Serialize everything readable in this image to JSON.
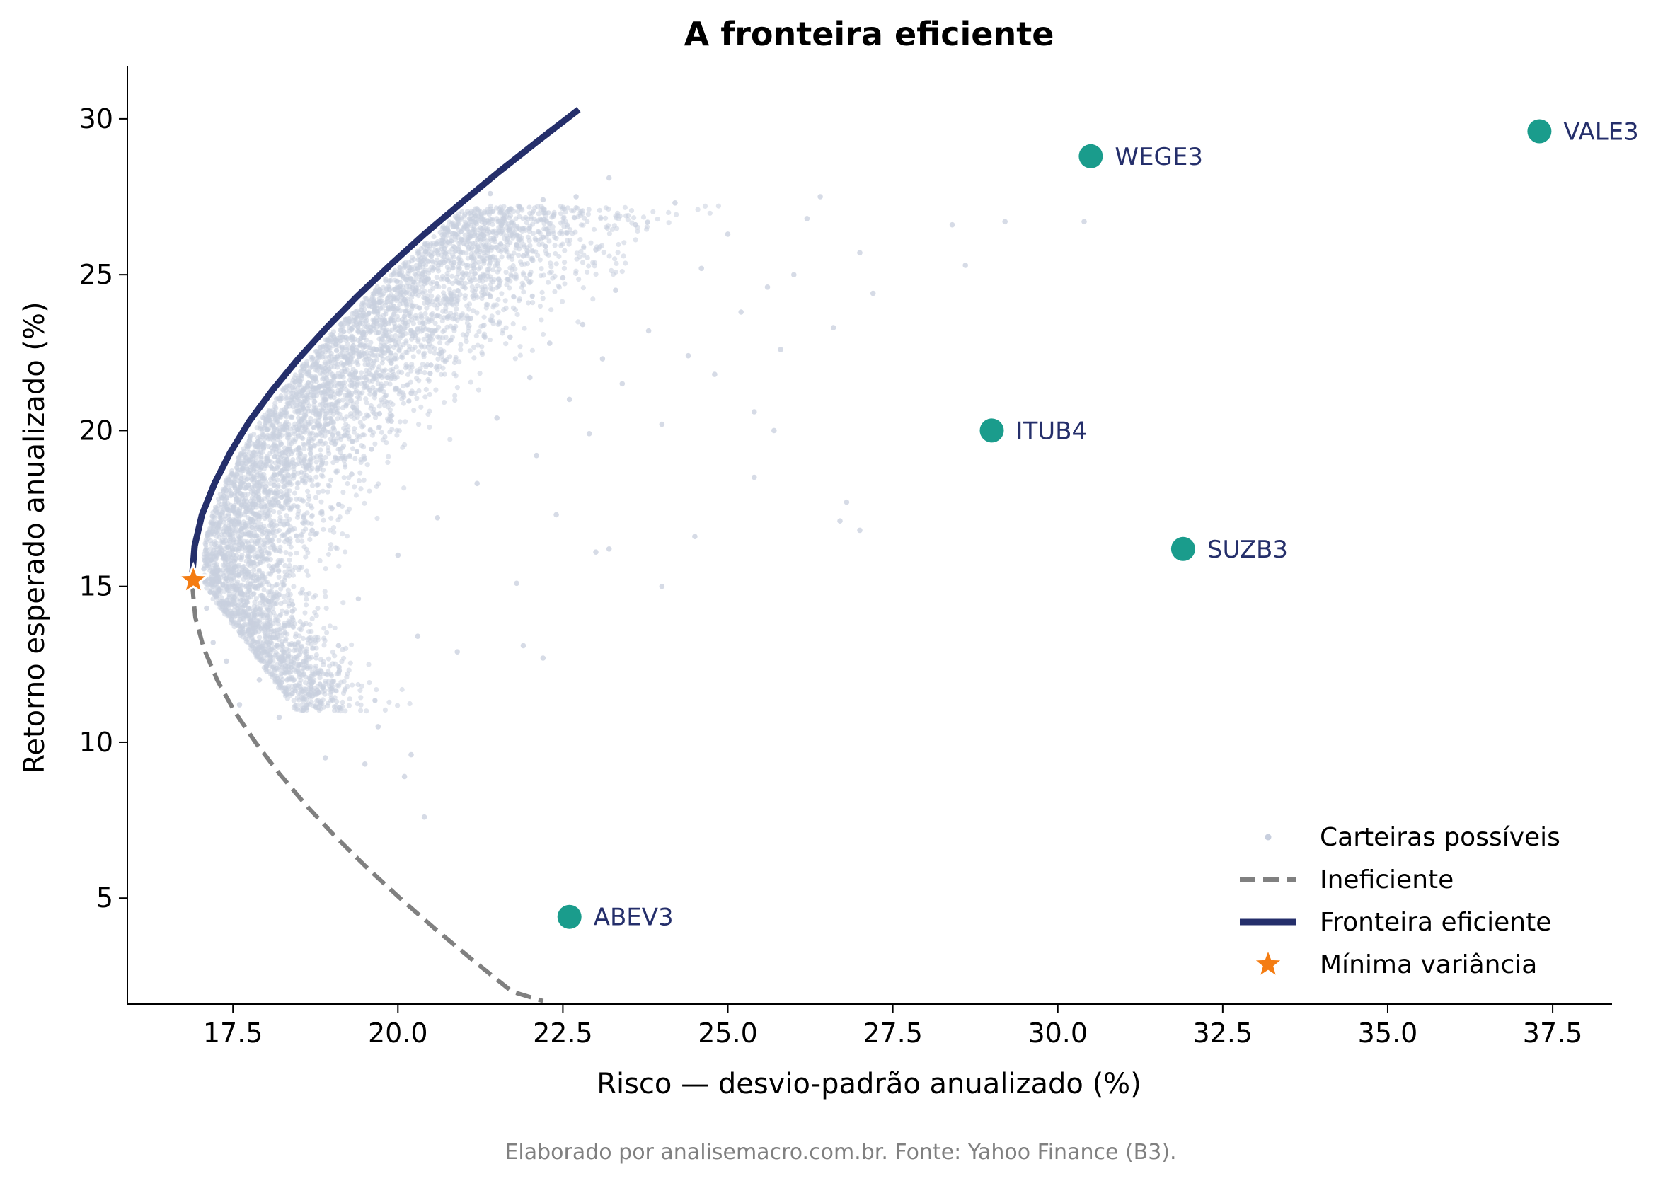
{
  "chart_data": {
    "type": "scatter",
    "title": "A fronteira eficiente",
    "xlabel": "Risco — desvio-padrão anualizado (%)",
    "ylabel": "Retorno esperado anualizado (%)",
    "xlim": [
      15.9,
      38.4
    ],
    "ylim": [
      1.6,
      31.7
    ],
    "xticks": [
      17.5,
      20.0,
      22.5,
      25.0,
      27.5,
      30.0,
      32.5,
      35.0,
      37.5
    ],
    "xtick_labels": [
      "17.5",
      "20.0",
      "22.5",
      "25.0",
      "27.5",
      "30.0",
      "32.5",
      "35.0",
      "37.5"
    ],
    "yticks": [
      5,
      10,
      15,
      20,
      25,
      30
    ],
    "ytick_labels": [
      "5",
      "10",
      "15",
      "20",
      "25",
      "30"
    ],
    "grid": false,
    "legend_position": "bottom-right",
    "legend": [
      {
        "label": "Carteiras possíveis",
        "kind": "dot",
        "color": "#c8cfde"
      },
      {
        "label": "Ineficiente",
        "kind": "dashed-line",
        "color": "#808080"
      },
      {
        "label": "Fronteira eficiente",
        "kind": "line",
        "color": "#252f6b"
      },
      {
        "label": "Mínima variância",
        "kind": "star",
        "color": "#f47c12"
      }
    ],
    "random_portfolios": {
      "name": "Carteiras possíveis",
      "color": "#c8cfde",
      "points": [
        [
          17.1,
          14.3
        ],
        [
          17.2,
          13.2
        ],
        [
          17.3,
          16.1
        ],
        [
          17.4,
          12.6
        ],
        [
          17.5,
          15.0
        ],
        [
          17.6,
          11.2
        ],
        [
          17.7,
          17.4
        ],
        [
          17.8,
          13.8
        ],
        [
          17.9,
          12.0
        ],
        [
          18.0,
          18.2
        ],
        [
          18.1,
          15.5
        ],
        [
          18.2,
          10.8
        ],
        [
          18.3,
          19.3
        ],
        [
          18.4,
          14.2
        ],
        [
          18.5,
          12.5
        ],
        [
          18.6,
          20.1
        ],
        [
          18.7,
          16.8
        ],
        [
          18.8,
          11.6
        ],
        [
          18.9,
          21.0
        ],
        [
          19.0,
          17.5
        ],
        [
          19.1,
          13.1
        ],
        [
          19.2,
          21.9
        ],
        [
          19.3,
          18.6
        ],
        [
          19.4,
          14.6
        ],
        [
          19.5,
          22.7
        ],
        [
          19.6,
          19.4
        ],
        [
          19.7,
          10.5
        ],
        [
          19.8,
          23.5
        ],
        [
          19.9,
          20.3
        ],
        [
          20.0,
          16.0
        ],
        [
          20.1,
          24.2
        ],
        [
          20.2,
          21.2
        ],
        [
          20.3,
          13.4
        ],
        [
          20.4,
          24.8
        ],
        [
          20.5,
          22.1
        ],
        [
          20.6,
          17.2
        ],
        [
          20.7,
          25.4
        ],
        [
          20.8,
          22.9
        ],
        [
          20.9,
          12.9
        ],
        [
          21.0,
          26.0
        ],
        [
          21.1,
          23.6
        ],
        [
          21.2,
          18.3
        ],
        [
          21.3,
          26.4
        ],
        [
          21.4,
          24.3
        ],
        [
          21.5,
          20.4
        ],
        [
          21.6,
          26.8
        ],
        [
          21.7,
          23.0
        ],
        [
          21.8,
          15.1
        ],
        [
          21.9,
          25.6
        ],
        [
          22.0,
          21.7
        ],
        [
          22.1,
          19.2
        ],
        [
          22.2,
          26.2
        ],
        [
          22.3,
          22.8
        ],
        [
          22.4,
          17.3
        ],
        [
          22.5,
          24.9
        ],
        [
          22.6,
          21.0
        ],
        [
          22.7,
          27.5
        ],
        [
          22.8,
          23.4
        ],
        [
          22.9,
          19.9
        ],
        [
          23.0,
          25.8
        ],
        [
          23.1,
          22.3
        ],
        [
          23.2,
          16.2
        ],
        [
          23.3,
          24.5
        ],
        [
          23.4,
          21.5
        ],
        [
          23.6,
          26.6
        ],
        [
          23.8,
          23.2
        ],
        [
          24.0,
          20.2
        ],
        [
          24.2,
          27.3
        ],
        [
          24.4,
          22.4
        ],
        [
          24.6,
          25.2
        ],
        [
          24.8,
          21.8
        ],
        [
          25.0,
          26.3
        ],
        [
          25.2,
          23.8
        ],
        [
          25.4,
          20.6
        ],
        [
          25.6,
          24.6
        ],
        [
          25.8,
          22.6
        ],
        [
          26.0,
          25.0
        ],
        [
          26.2,
          26.8
        ],
        [
          26.4,
          27.5
        ],
        [
          26.6,
          23.3
        ],
        [
          26.8,
          17.7
        ],
        [
          27.0,
          16.8
        ],
        [
          27.0,
          25.7
        ],
        [
          27.2,
          24.4
        ],
        [
          28.4,
          26.6
        ],
        [
          28.6,
          25.3
        ],
        [
          29.2,
          26.7
        ],
        [
          30.4,
          26.7
        ],
        [
          23.2,
          28.1
        ],
        [
          22.2,
          27.4
        ],
        [
          21.4,
          27.6
        ],
        [
          24.0,
          15.0
        ],
        [
          20.4,
          7.6
        ],
        [
          20.1,
          8.9
        ],
        [
          20.2,
          9.6
        ],
        [
          19.5,
          9.3
        ],
        [
          18.9,
          9.5
        ],
        [
          22.2,
          12.7
        ],
        [
          21.9,
          13.1
        ],
        [
          24.5,
          16.6
        ],
        [
          25.4,
          18.5
        ],
        [
          25.7,
          20.0
        ],
        [
          26.7,
          17.1
        ],
        [
          23.0,
          16.1
        ]
      ]
    },
    "efficient_frontier": {
      "name": "Fronteira eficiente",
      "color": "#252f6b",
      "points": [
        [
          16.88,
          15.3
        ],
        [
          16.92,
          16.3
        ],
        [
          17.03,
          17.3
        ],
        [
          17.22,
          18.3
        ],
        [
          17.46,
          19.3
        ],
        [
          17.75,
          20.3
        ],
        [
          18.1,
          21.3
        ],
        [
          18.49,
          22.3
        ],
        [
          18.92,
          23.3
        ],
        [
          19.38,
          24.3
        ],
        [
          19.88,
          25.3
        ],
        [
          20.4,
          26.3
        ],
        [
          20.96,
          27.3
        ],
        [
          21.53,
          28.3
        ],
        [
          22.13,
          29.3
        ],
        [
          22.74,
          30.3
        ]
      ]
    },
    "inefficient_frontier": {
      "name": "Ineficiente",
      "color": "#808080",
      "points": [
        [
          16.88,
          15.1
        ],
        [
          16.93,
          14.0
        ],
        [
          17.06,
          13.0
        ],
        [
          17.26,
          12.0
        ],
        [
          17.52,
          11.0
        ],
        [
          17.84,
          10.0
        ],
        [
          18.2,
          9.0
        ],
        [
          18.6,
          8.0
        ],
        [
          19.04,
          7.0
        ],
        [
          19.52,
          6.0
        ],
        [
          20.03,
          5.0
        ],
        [
          20.57,
          4.0
        ],
        [
          21.14,
          3.0
        ],
        [
          21.73,
          2.0
        ],
        [
          22.2,
          1.7
        ]
      ]
    },
    "min_variance": {
      "label": "Mínima variância",
      "x": 16.9,
      "y": 15.2,
      "color": "#f47c12"
    },
    "assets": {
      "color": "#1a9c8c",
      "label_color": "#252f6b",
      "items": [
        {
          "label": "VALE3",
          "x": 37.3,
          "y": 29.6
        },
        {
          "label": "WEGE3",
          "x": 30.5,
          "y": 28.8
        },
        {
          "label": "ITUB4",
          "x": 29.0,
          "y": 20.0
        },
        {
          "label": "SUZB3",
          "x": 31.9,
          "y": 16.2
        },
        {
          "label": "ABEV3",
          "x": 22.6,
          "y": 4.4
        }
      ]
    }
  },
  "footer": {
    "credit": "Elaborado por analisemacro.com.br. Fonte: Yahoo Finance (B3)."
  }
}
